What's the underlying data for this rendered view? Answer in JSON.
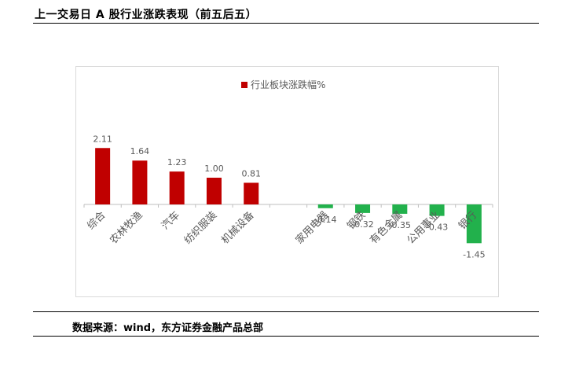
{
  "header": {
    "title": "上一交易日 A 股行业涨跌表现（前五后五）"
  },
  "source": {
    "text": "数据来源：wind，东方证券金融产品总部"
  },
  "colors": {
    "positive": "#c00000",
    "negative": "#22b14c",
    "axis": "#bfbfbf",
    "label": "#595959"
  },
  "chart_data": {
    "type": "bar",
    "legend": [
      "行业板块涨跌幅%"
    ],
    "legend_position": "top-center",
    "grid": false,
    "categories": [
      "综合",
      "农林牧渔",
      "汽车",
      "纺织服装",
      "机械设备",
      "",
      "家用电器",
      "钢铁",
      "有色金属",
      "公用事业",
      "银行"
    ],
    "series": [
      {
        "name": "行业板块涨跌幅%",
        "values": [
          2.11,
          1.64,
          1.23,
          1.0,
          0.81,
          null,
          -0.14,
          -0.32,
          -0.35,
          -0.43,
          -1.45
        ],
        "labels": [
          "2.11",
          "1.64",
          "1.23",
          "1.00",
          "0.81",
          "",
          "-0.14",
          "-0.32",
          "-0.35",
          "-0.43",
          "-1.45"
        ]
      }
    ],
    "ylim": [
      -1.6,
      2.5
    ]
  }
}
